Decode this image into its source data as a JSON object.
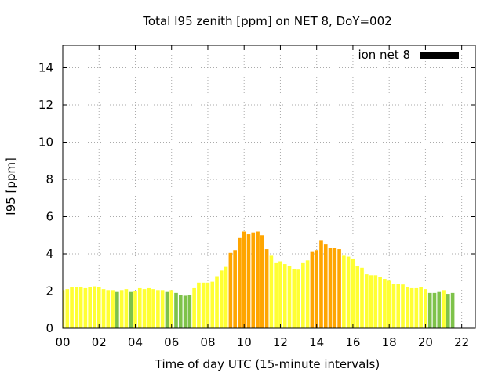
{
  "chart_data": {
    "type": "bar",
    "title": "Total I95 zenith [ppm] on NET 8, DoY=002",
    "xlabel": "Time of day UTC (15-minute intervals)",
    "ylabel": "I95 [ppm]",
    "xlim": [
      0,
      22.75
    ],
    "ylim": [
      0,
      15.2
    ],
    "xticks": [
      0,
      2,
      4,
      6,
      8,
      10,
      12,
      14,
      16,
      18,
      20,
      22
    ],
    "xtick_labels": [
      "00",
      "02",
      "04",
      "06",
      "08",
      "10",
      "12",
      "14",
      "16",
      "18",
      "20",
      "22"
    ],
    "yticks": [
      0,
      2,
      4,
      6,
      8,
      10,
      12,
      14
    ],
    "grid": true,
    "legend": {
      "label": "ion net 8",
      "color": "#000000",
      "position": "top-right"
    },
    "interval_hours": 0.25,
    "bar_fraction": 0.8,
    "colors": {
      "green": "#7ec24a",
      "yellow": "#ffff33",
      "orange": "#ffa500"
    },
    "thresholds": {
      "green_below": 2.0,
      "orange_at_or_above": 4.0
    },
    "values": [
      2.05,
      2.1,
      2.2,
      2.2,
      2.2,
      2.15,
      2.2,
      2.25,
      2.2,
      2.1,
      2.05,
      2.05,
      1.95,
      2.05,
      2.1,
      1.95,
      2.0,
      2.15,
      2.1,
      2.15,
      2.1,
      2.05,
      2.05,
      1.95,
      2.05,
      1.9,
      1.8,
      1.75,
      1.8,
      2.15,
      2.45,
      2.45,
      2.45,
      2.5,
      2.8,
      3.1,
      3.3,
      4.05,
      4.2,
      4.85,
      5.2,
      5.05,
      5.15,
      5.2,
      5.0,
      4.25,
      3.9,
      3.5,
      3.6,
      3.45,
      3.35,
      3.2,
      3.15,
      3.5,
      3.65,
      4.1,
      4.2,
      4.7,
      4.5,
      4.3,
      4.3,
      4.25,
      3.9,
      3.85,
      3.75,
      3.35,
      3.25,
      2.9,
      2.85,
      2.85,
      2.75,
      2.65,
      2.55,
      2.4,
      2.4,
      2.35,
      2.2,
      2.15,
      2.15,
      2.2,
      2.1,
      1.9,
      1.9,
      1.95,
      2.05,
      1.85,
      1.9
    ]
  }
}
